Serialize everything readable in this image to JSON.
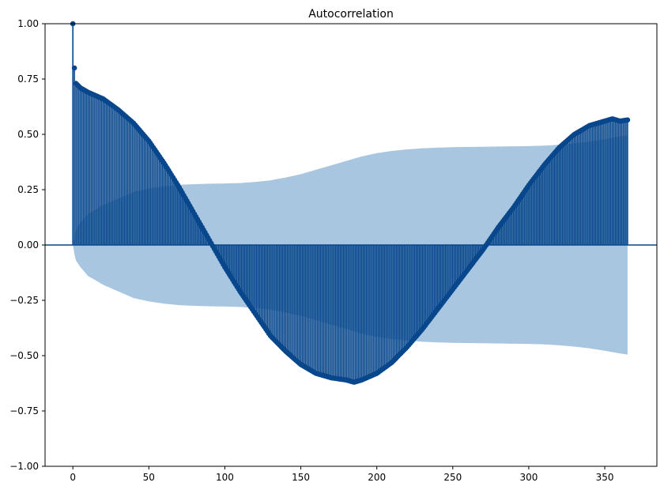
{
  "chart_data": {
    "type": "stem",
    "title": "Autocorrelation",
    "xlabel": "",
    "ylabel": "",
    "xlim": [
      -18.3,
      384.3
    ],
    "ylim": [
      -1.0,
      1.0
    ],
    "x_ticks": [
      0,
      50,
      100,
      150,
      200,
      250,
      300,
      350
    ],
    "y_ticks": [
      -1.0,
      -0.75,
      -0.5,
      -0.25,
      0.0,
      0.25,
      0.5,
      0.75,
      1.0
    ],
    "x_tick_labels": [
      "0",
      "50",
      "100",
      "150",
      "200",
      "250",
      "300",
      "350"
    ],
    "y_tick_labels": [
      "−1.00",
      "−0.75",
      "−0.50",
      "−0.25",
      "0.00",
      "0.25",
      "0.50",
      "0.75",
      "1.00"
    ],
    "lag_max": 365,
    "acf_knots": {
      "lag": [
        0,
        1,
        2,
        5,
        10,
        20,
        30,
        40,
        50,
        60,
        70,
        80,
        90,
        100,
        110,
        120,
        130,
        140,
        150,
        160,
        170,
        180,
        185,
        190,
        200,
        210,
        220,
        230,
        240,
        250,
        260,
        270,
        280,
        290,
        300,
        310,
        320,
        330,
        340,
        350,
        355,
        360,
        365
      ],
      "value": [
        1.0,
        0.8,
        0.73,
        0.71,
        0.69,
        0.66,
        0.61,
        0.55,
        0.47,
        0.37,
        0.26,
        0.14,
        0.02,
        -0.1,
        -0.21,
        -0.31,
        -0.41,
        -0.48,
        -0.54,
        -0.58,
        -0.6,
        -0.61,
        -0.62,
        -0.61,
        -0.58,
        -0.53,
        -0.46,
        -0.38,
        -0.29,
        -0.2,
        -0.11,
        -0.02,
        0.08,
        0.17,
        0.27,
        0.36,
        0.44,
        0.5,
        0.54,
        0.56,
        0.57,
        0.56,
        0.565
      ]
    },
    "confidence_band_knots": {
      "lag": [
        0,
        1,
        2,
        5,
        10,
        20,
        30,
        40,
        50,
        60,
        70,
        80,
        90,
        100,
        110,
        120,
        130,
        140,
        150,
        160,
        170,
        180,
        190,
        200,
        210,
        220,
        230,
        240,
        250,
        260,
        270,
        280,
        290,
        300,
        310,
        320,
        330,
        340,
        350,
        360,
        365
      ],
      "value": [
        0.0,
        0.04,
        0.07,
        0.1,
        0.14,
        0.18,
        0.21,
        0.24,
        0.255,
        0.265,
        0.272,
        0.275,
        0.277,
        0.278,
        0.28,
        0.285,
        0.292,
        0.305,
        0.32,
        0.34,
        0.36,
        0.38,
        0.4,
        0.415,
        0.425,
        0.432,
        0.437,
        0.44,
        0.442,
        0.443,
        0.444,
        0.445,
        0.446,
        0.447,
        0.449,
        0.453,
        0.459,
        0.467,
        0.478,
        0.49,
        0.495
      ]
    },
    "colors": {
      "stem": "#08478c",
      "band": "#a8c6e0",
      "zero_line": "#08478c",
      "axis": "#000000"
    }
  }
}
